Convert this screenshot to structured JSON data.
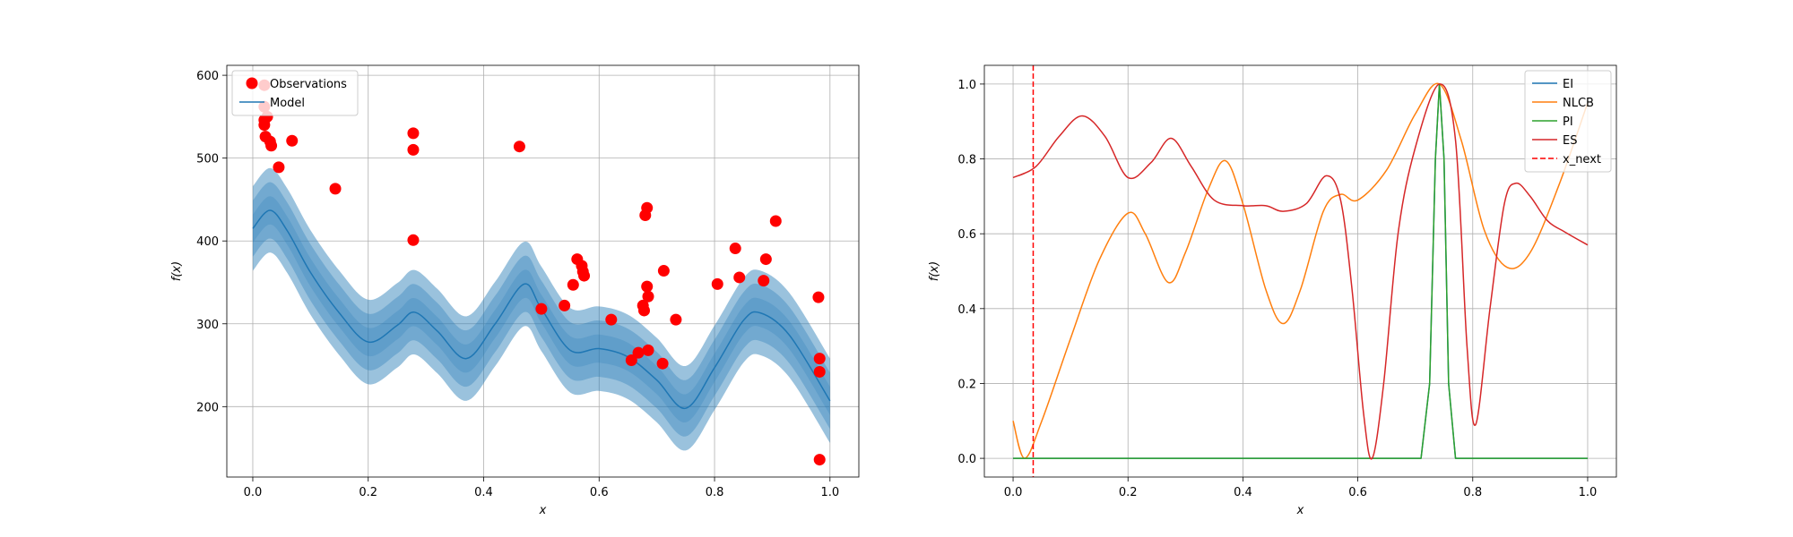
{
  "chart_data": [
    {
      "type": "scatter",
      "xlabel": "x",
      "ylabel": "f(x)",
      "xlim": [
        -0.045,
        1.05
      ],
      "ylim": [
        115,
        612
      ],
      "xticks": [
        0.0,
        0.2,
        0.4,
        0.6,
        0.8,
        1.0
      ],
      "xtick_labels": [
        "0.0",
        "0.2",
        "0.4",
        "0.6",
        "0.8",
        "1.0"
      ],
      "yticks": [
        200,
        300,
        400,
        500,
        600
      ],
      "ytick_labels": [
        "200",
        "300",
        "400",
        "500",
        "600"
      ],
      "grid": true,
      "legend": {
        "placement": "top-left",
        "entries": [
          "Observations",
          "Model"
        ]
      },
      "series": [
        {
          "name": "Observations",
          "color": "#ff0000",
          "points": [
            [
              0.02,
              588
            ],
            [
              0.02,
              562
            ],
            [
              0.02,
              546
            ],
            [
              0.02,
              540
            ],
            [
              0.025,
              550
            ],
            [
              0.022,
              526
            ],
            [
              0.03,
              520
            ],
            [
              0.032,
              515
            ],
            [
              0.045,
              489
            ],
            [
              0.068,
              521
            ],
            [
              0.143,
              463
            ],
            [
              0.278,
              530
            ],
            [
              0.278,
              510
            ],
            [
              0.278,
              401
            ],
            [
              0.462,
              514
            ],
            [
              0.5,
              318
            ],
            [
              0.54,
              322
            ],
            [
              0.555,
              347
            ],
            [
              0.562,
              378
            ],
            [
              0.57,
              370
            ],
            [
              0.572,
              363
            ],
            [
              0.574,
              358
            ],
            [
              0.621,
              305
            ],
            [
              0.656,
              256
            ],
            [
              0.668,
              265
            ],
            [
              0.676,
              322
            ],
            [
              0.678,
              316
            ],
            [
              0.68,
              431
            ],
            [
              0.683,
              440
            ],
            [
              0.683,
              345
            ],
            [
              0.685,
              333
            ],
            [
              0.685,
              268
            ],
            [
              0.71,
              252
            ],
            [
              0.712,
              364
            ],
            [
              0.733,
              305
            ],
            [
              0.805,
              348
            ],
            [
              0.836,
              391
            ],
            [
              0.843,
              356
            ],
            [
              0.885,
              352
            ],
            [
              0.889,
              378
            ],
            [
              0.906,
              424
            ],
            [
              0.98,
              332
            ],
            [
              0.982,
              258
            ],
            [
              0.982,
              242
            ],
            [
              0.982,
              136
            ]
          ]
        },
        {
          "name": "Model",
          "color": "#1f77b4",
          "mean": [
            [
              0.0,
              415
            ],
            [
              0.03,
              437
            ],
            [
              0.06,
              412
            ],
            [
              0.1,
              362
            ],
            [
              0.15,
              313
            ],
            [
              0.2,
              278
            ],
            [
              0.25,
              298
            ],
            [
              0.28,
              314
            ],
            [
              0.32,
              291
            ],
            [
              0.37,
              258
            ],
            [
              0.42,
              300
            ],
            [
              0.47,
              348
            ],
            [
              0.5,
              318
            ],
            [
              0.55,
              268
            ],
            [
              0.6,
              270
            ],
            [
              0.65,
              260
            ],
            [
              0.7,
              232
            ],
            [
              0.75,
              198
            ],
            [
              0.8,
              247
            ],
            [
              0.85,
              304
            ],
            [
              0.88,
              313
            ],
            [
              0.93,
              286
            ],
            [
              1.0,
              207
            ]
          ],
          "bands_std": [
            17,
            34,
            51
          ]
        }
      ]
    },
    {
      "type": "line",
      "xlabel": "x",
      "ylabel": "f(x)",
      "xlim": [
        -0.05,
        1.05
      ],
      "ylim": [
        -0.05,
        1.05
      ],
      "xticks": [
        0.0,
        0.2,
        0.4,
        0.6,
        0.8,
        1.0
      ],
      "xtick_labels": [
        "0.0",
        "0.2",
        "0.4",
        "0.6",
        "0.8",
        "1.0"
      ],
      "yticks": [
        0.0,
        0.2,
        0.4,
        0.6,
        0.8,
        1.0
      ],
      "ytick_labels": [
        "0.0",
        "0.2",
        "0.4",
        "0.6",
        "0.8",
        "1.0"
      ],
      "grid": true,
      "legend": {
        "placement": "top-right",
        "entries": [
          "EI",
          "NLCB",
          "PI",
          "ES",
          "x_next"
        ]
      },
      "series": [
        {
          "name": "EI",
          "color": "#1f77b4",
          "points": [
            [
              0.0,
              0.0
            ],
            [
              0.71,
              0.0
            ],
            [
              0.725,
              0.2
            ],
            [
              0.735,
              0.8
            ],
            [
              0.742,
              1.0
            ],
            [
              0.75,
              0.8
            ],
            [
              0.758,
              0.2
            ],
            [
              0.77,
              0.0
            ],
            [
              1.0,
              0.0
            ]
          ]
        },
        {
          "name": "NLCB",
          "color": "#ff7f0e",
          "points": [
            [
              0.0,
              0.1
            ],
            [
              0.02,
              0.0
            ],
            [
              0.05,
              0.1
            ],
            [
              0.1,
              0.32
            ],
            [
              0.15,
              0.53
            ],
            [
              0.2,
              0.655
            ],
            [
              0.23,
              0.6
            ],
            [
              0.27,
              0.47
            ],
            [
              0.3,
              0.55
            ],
            [
              0.34,
              0.72
            ],
            [
              0.37,
              0.795
            ],
            [
              0.4,
              0.68
            ],
            [
              0.44,
              0.45
            ],
            [
              0.47,
              0.36
            ],
            [
              0.5,
              0.45
            ],
            [
              0.54,
              0.66
            ],
            [
              0.57,
              0.705
            ],
            [
              0.6,
              0.69
            ],
            [
              0.65,
              0.77
            ],
            [
              0.7,
              0.92
            ],
            [
              0.742,
              1.0
            ],
            [
              0.78,
              0.85
            ],
            [
              0.82,
              0.61
            ],
            [
              0.86,
              0.51
            ],
            [
              0.9,
              0.55
            ],
            [
              0.95,
              0.73
            ],
            [
              1.0,
              0.95
            ]
          ]
        },
        {
          "name": "PI",
          "color": "#2ca02c",
          "points": [
            [
              0.0,
              0.0
            ],
            [
              0.71,
              0.0
            ],
            [
              0.725,
              0.2
            ],
            [
              0.735,
              0.8
            ],
            [
              0.742,
              1.0
            ],
            [
              0.75,
              0.8
            ],
            [
              0.758,
              0.2
            ],
            [
              0.77,
              0.0
            ],
            [
              1.0,
              0.0
            ]
          ]
        },
        {
          "name": "ES",
          "color": "#d62728",
          "points": [
            [
              0.0,
              0.75
            ],
            [
              0.04,
              0.78
            ],
            [
              0.08,
              0.86
            ],
            [
              0.12,
              0.915
            ],
            [
              0.16,
              0.86
            ],
            [
              0.2,
              0.75
            ],
            [
              0.24,
              0.79
            ],
            [
              0.275,
              0.855
            ],
            [
              0.31,
              0.78
            ],
            [
              0.35,
              0.69
            ],
            [
              0.4,
              0.675
            ],
            [
              0.44,
              0.675
            ],
            [
              0.47,
              0.66
            ],
            [
              0.51,
              0.68
            ],
            [
              0.545,
              0.755
            ],
            [
              0.57,
              0.69
            ],
            [
              0.59,
              0.45
            ],
            [
              0.61,
              0.12
            ],
            [
              0.625,
              0.0
            ],
            [
              0.645,
              0.2
            ],
            [
              0.67,
              0.6
            ],
            [
              0.7,
              0.83
            ],
            [
              0.742,
              1.0
            ],
            [
              0.77,
              0.85
            ],
            [
              0.79,
              0.3
            ],
            [
              0.805,
              0.09
            ],
            [
              0.83,
              0.4
            ],
            [
              0.855,
              0.68
            ],
            [
              0.875,
              0.735
            ],
            [
              0.9,
              0.7
            ],
            [
              0.93,
              0.635
            ],
            [
              0.96,
              0.605
            ],
            [
              1.0,
              0.57
            ]
          ]
        },
        {
          "name": "x_next",
          "color": "#ff0000",
          "style": "dashed",
          "x": 0.035
        }
      ]
    }
  ]
}
